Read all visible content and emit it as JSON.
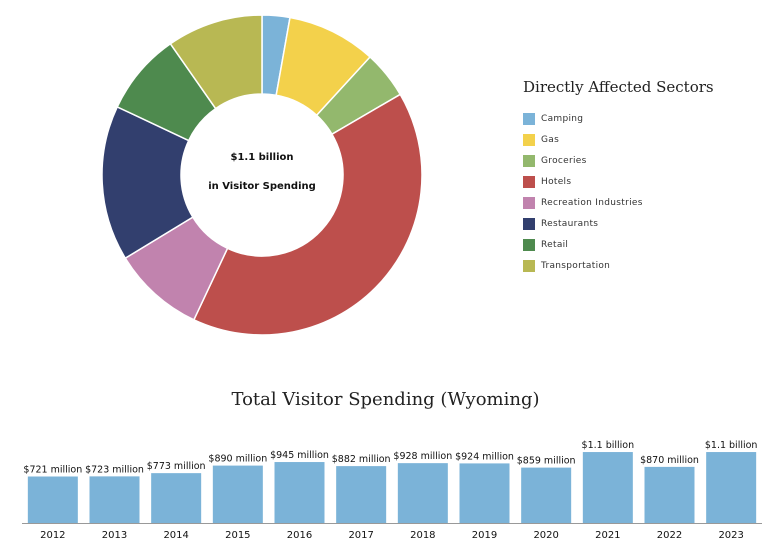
{
  "chart_data": [
    {
      "type": "pie",
      "title": "Directly Affected Sectors",
      "center_label": [
        "$1.1 billion",
        "in Visitor Spending"
      ],
      "slices": [
        {
          "name": "Camping",
          "value": 2.8,
          "color": "#7bb3d8"
        },
        {
          "name": "Gas",
          "value": 9.0,
          "color": "#f3d14b"
        },
        {
          "name": "Groceries",
          "value": 4.8,
          "color": "#93b86d"
        },
        {
          "name": "Hotels",
          "value": 40.4,
          "color": "#bd4f4c"
        },
        {
          "name": "Recreation Industries",
          "value": 9.3,
          "color": "#c183ae"
        },
        {
          "name": "Restaurants",
          "value": 15.7,
          "color": "#323f6e"
        },
        {
          "name": "Retail",
          "value": 8.3,
          "color": "#4e8a4e"
        },
        {
          "name": "Transportation",
          "value": 9.7,
          "color": "#b8b853"
        }
      ]
    },
    {
      "type": "bar",
      "title": "Total Visitor Spending (Wyoming)",
      "categories": [
        "2012",
        "2013",
        "2014",
        "2015",
        "2016",
        "2017",
        "2018",
        "2019",
        "2020",
        "2021",
        "2022",
        "2023"
      ],
      "values": [
        721,
        723,
        773,
        890,
        945,
        882,
        928,
        924,
        859,
        1100,
        870,
        1100
      ],
      "data_labels": [
        "$721 million",
        "$723 million",
        "$773 million",
        "$890 million",
        "$945 million",
        "$882 million",
        "$928 million",
        "$924 million",
        "$859 million",
        "$1.1 billion",
        "$870 million",
        "$1.1 billion"
      ],
      "color": "#7bb3d8",
      "units": "million USD"
    }
  ]
}
